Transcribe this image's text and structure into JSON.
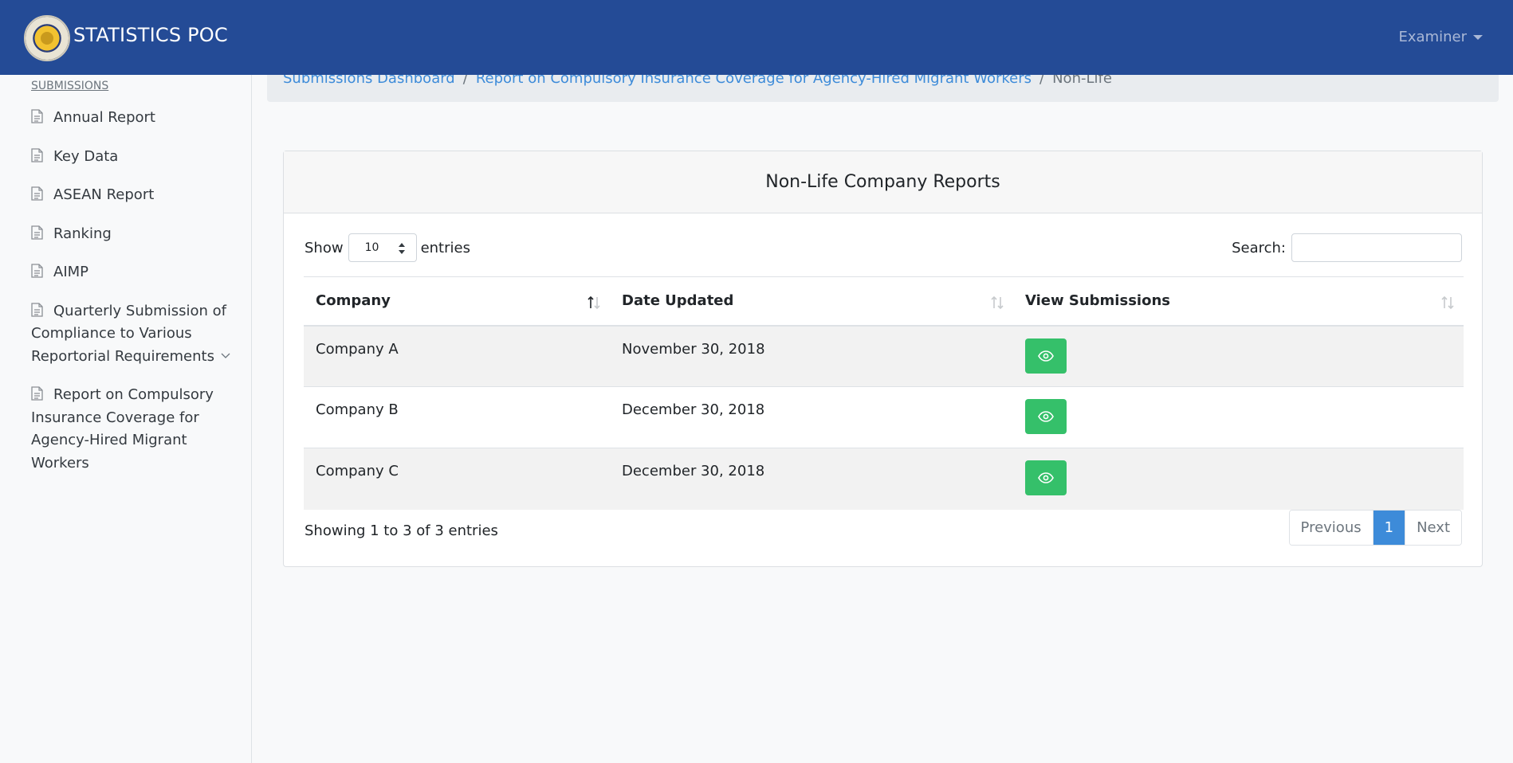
{
  "navbar": {
    "brand": "STATISTICS POC",
    "user_menu": "Examiner"
  },
  "sidebar": {
    "heading": "SUBMISSIONS",
    "items": [
      {
        "label": "Annual Report"
      },
      {
        "label": "Key Data"
      },
      {
        "label": "ASEAN Report"
      },
      {
        "label": "Ranking"
      },
      {
        "label": "AIMP"
      },
      {
        "label": "Quarterly Submission of Compliance to Various Reportorial Requirements"
      },
      {
        "label": "Report on Compulsory Insurance Coverage for Agency-Hired Migrant Workers"
      }
    ]
  },
  "breadcrumb": {
    "items": [
      "Submissions Dashboard",
      "Report on Compulsory Insurance Coverage for Agency-Hired Migrant Workers"
    ],
    "active": "Non-Life",
    "separator": "/"
  },
  "card": {
    "title": "Non-Life Company Reports",
    "length": {
      "show_label": "Show",
      "value": "10",
      "entries_label": "entries"
    },
    "search": {
      "label": "Search:",
      "value": ""
    },
    "columns": [
      "Company",
      "Date Updated",
      "View Submissions"
    ],
    "rows": [
      {
        "company": "Company A",
        "date": "November 30, 2018"
      },
      {
        "company": "Company B",
        "date": "December 30, 2018"
      },
      {
        "company": "Company C",
        "date": "December 30, 2018"
      }
    ],
    "info": "Showing 1 to 3 of 3 entries",
    "pager": {
      "previous": "Previous",
      "current": "1",
      "next": "Next"
    }
  },
  "colors": {
    "navbar": "#244b96",
    "link": "#3d8bd9",
    "view_button": "#35c06a"
  }
}
